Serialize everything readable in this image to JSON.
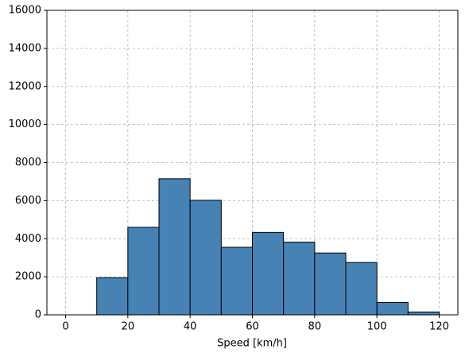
{
  "chart_data": {
    "type": "histogram",
    "x_label": "Speed [km/h]",
    "bins": [
      0,
      10,
      20,
      30,
      40,
      50,
      60,
      70,
      80,
      90,
      100,
      110,
      120
    ],
    "values": [
      0,
      1950,
      4600,
      7150,
      6020,
      3550,
      4330,
      3820,
      3250,
      2750,
      650,
      150
    ],
    "color": "#4682b4",
    "edgecolor": "#000000",
    "xlim": [
      -6,
      126
    ],
    "ylim": [
      0,
      16000
    ],
    "xticks": [
      0,
      20,
      40,
      60,
      80,
      100,
      120
    ],
    "yticks": [
      0,
      2000,
      4000,
      6000,
      8000,
      10000,
      12000,
      14000,
      16000
    ],
    "grid": true
  }
}
